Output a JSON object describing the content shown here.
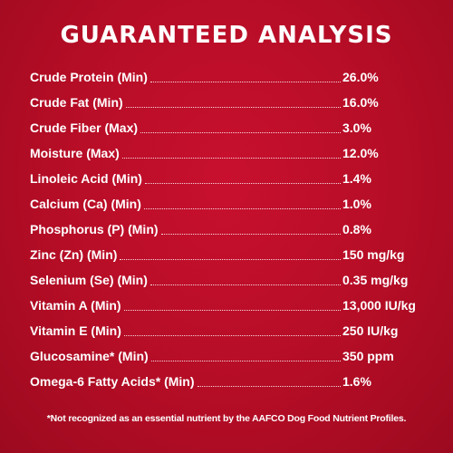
{
  "title": "GUARANTEED ANALYSIS",
  "nutrients": [
    {
      "label": "Crude Protein (Min)",
      "value": "26.0%"
    },
    {
      "label": "Crude Fat (Min)",
      "value": "16.0%"
    },
    {
      "label": "Crude Fiber (Max)",
      "value": "3.0%"
    },
    {
      "label": "Moisture (Max)",
      "value": "12.0%"
    },
    {
      "label": "Linoleic Acid (Min)",
      "value": "1.4%"
    },
    {
      "label": "Calcium (Ca) (Min)",
      "value": "1.0%"
    },
    {
      "label": "Phosphorus (P) (Min)",
      "value": "0.8%"
    },
    {
      "label": "Zinc (Zn) (Min)",
      "value": "150 mg/kg"
    },
    {
      "label": "Selenium (Se) (Min)",
      "value": "0.35 mg/kg"
    },
    {
      "label": "Vitamin A (Min)",
      "value": "13,000 IU/kg"
    },
    {
      "label": "Vitamin E (Min)",
      "value": "250 IU/kg"
    },
    {
      "label": "Glucosamine* (Min)",
      "value": "350 ppm"
    },
    {
      "label": "Omega-6 Fatty Acids* (Min)",
      "value": "1.6%"
    }
  ],
  "footnote": "*Not recognized as an essential nutrient by the AAFCO Dog Food Nutrient Profiles.",
  "colors": {
    "background": "#b50d26",
    "text": "#ffffff"
  }
}
